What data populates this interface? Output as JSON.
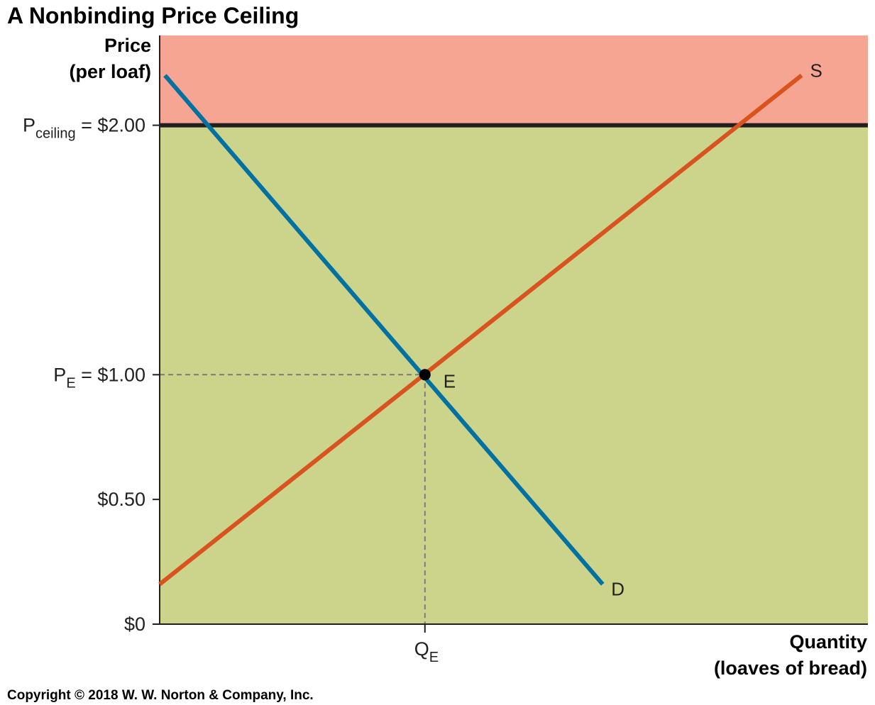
{
  "chart_data": {
    "type": "line",
    "title": "A Nonbinding Price Ceiling",
    "ylabel_line1": "Price",
    "ylabel_line2": "(per loaf)",
    "xlabel_line1": "Quantity",
    "xlabel_line2": "(loaves of bread)",
    "ylim": [
      0,
      2.36
    ],
    "xlim": [
      0,
      2.67
    ],
    "y_ticks": [
      {
        "value": 0,
        "label": "$0"
      },
      {
        "value": 0.5,
        "label": "$0.50"
      },
      {
        "value": 1.0,
        "main": "P",
        "sub": "E",
        "rest": " = $1.00"
      },
      {
        "value": 2.0,
        "main": "P",
        "sub": "ceiling",
        "rest": " = $2.00"
      }
    ],
    "x_ticks": [
      {
        "value": 1.0,
        "main": "Q",
        "sub": "E"
      }
    ],
    "price_ceiling": 2.0,
    "series": [
      {
        "name": "D",
        "color": "#0071a0",
        "points": [
          [
            0.02,
            2.2
          ],
          [
            1.67,
            0.16
          ]
        ]
      },
      {
        "name": "S",
        "color": "#d9531e",
        "points": [
          [
            0.0,
            0.16
          ],
          [
            2.42,
            2.2
          ]
        ]
      }
    ],
    "equilibrium": {
      "label": "E",
      "x": 1.0,
      "y": 1.0
    },
    "regions": {
      "above_ceiling_color": "#f7a593",
      "below_ceiling_color": "#ccd48c"
    },
    "copyright": "Copyright © 2018 W. W. Norton & Company, Inc."
  }
}
